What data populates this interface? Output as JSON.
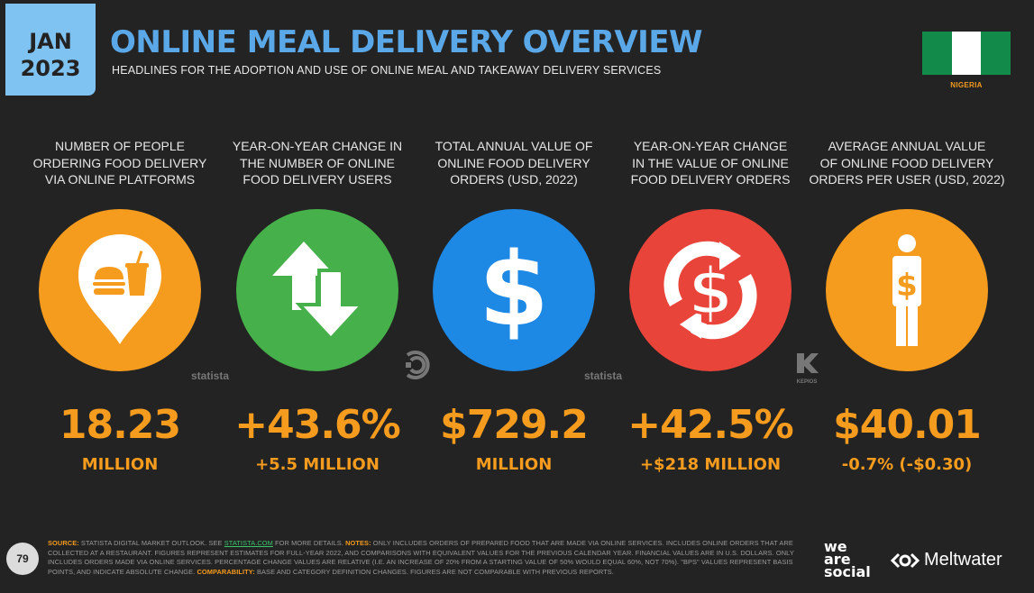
{
  "badge": {
    "month": "JAN",
    "year": "2023"
  },
  "header": {
    "title": "ONLINE MEAL DELIVERY OVERVIEW",
    "subtitle": "HEADLINES FOR THE ADOPTION AND USE OF ONLINE MEAL AND TAKEAWAY DELIVERY SERVICES",
    "country": "NIGERIA"
  },
  "colors": {
    "orange": "#f59b1d",
    "green": "#46b04a",
    "blue": "#1e88e5",
    "red": "#e8443a",
    "title_blue": "#5ba8e8",
    "flag_green": "#118a4a"
  },
  "stats": [
    {
      "label": [
        "NUMBER OF PEOPLE",
        "ORDERING FOOD DELIVERY",
        "VIA ONLINE PLATFORMS"
      ],
      "value": "18.23",
      "sub": "MILLION",
      "icon": "food-location-pin-icon",
      "color": "#f59b1d"
    },
    {
      "label": [
        "YEAR-ON-YEAR CHANGE IN",
        "THE NUMBER OF ONLINE",
        "FOOD DELIVERY USERS"
      ],
      "value": "+43.6%",
      "sub": "+5.5 MILLION",
      "icon": "up-down-arrows-icon",
      "color": "#46b04a"
    },
    {
      "label": [
        "TOTAL ANNUAL VALUE OF",
        "ONLINE FOOD DELIVERY",
        "ORDERS (USD, 2022)"
      ],
      "value": "$729.2",
      "sub": "MILLION",
      "icon": "dollar-sign-icon",
      "color": "#1e88e5"
    },
    {
      "label": [
        "YEAR-ON-YEAR CHANGE",
        "IN THE VALUE OF ONLINE",
        "FOOD DELIVERY ORDERS"
      ],
      "value": "+42.5%",
      "sub": "+$218 MILLION",
      "icon": "dollar-cycle-icon",
      "color": "#e8443a"
    },
    {
      "label": [
        "AVERAGE ANNUAL VALUE",
        "OF ONLINE FOOD DELIVERY",
        "ORDERS PER USER (USD, 2022)"
      ],
      "value": "$40.01",
      "sub": "-0.7% (-$0.30)",
      "icon": "person-dollar-icon",
      "color": "#f59b1d"
    }
  ],
  "source_logos": {
    "statista": "statista",
    "kepios": "KEPIOS"
  },
  "footer": {
    "source_label": "SOURCE:",
    "source_text": " STATISTA DIGITAL MARKET OUTLOOK. SEE ",
    "source_link": "STATISTA.COM",
    "source_tail": " FOR MORE DETAILS. ",
    "notes_label": "NOTES:",
    "notes_text": " ONLY INCLUDES ORDERS OF PREPARED FOOD THAT ARE MADE VIA ONLINE SERVICES. INCLUDES ONLINE ORDERS THAT ARE COLLECTED AT A RESTAURANT. FIGURES REPRESENT ESTIMATES FOR FULL-YEAR 2022, AND COMPARISONS WITH EQUIVALENT VALUES FOR THE PREVIOUS CALENDAR YEAR. FINANCIAL VALUES ARE IN U.S. DOLLARS. ONLY INCLUDES ORDERS MADE VIA ONLINE SERVICES. PERCENTAGE CHANGE VALUES ARE RELATIVE (I.E. AN INCREASE OF 20% FROM A STARTING VALUE OF 50% WOULD EQUAL 60%, NOT 70%). \"BPS\" VALUES REPRESENT BASIS POINTS, AND INDICATE ABSOLUTE CHANGE. ",
    "comparability_label": "COMPARABILITY:",
    "comparability_text": " BASE AND CATEGORY DEFINITION CHANGES. FIGURES ARE NOT COMPARABLE WITH PREVIOUS REPORTS."
  },
  "page_number": "79",
  "brand": {
    "we": "we",
    "are": "are",
    "social": "social",
    "meltwater": "Meltwater"
  }
}
